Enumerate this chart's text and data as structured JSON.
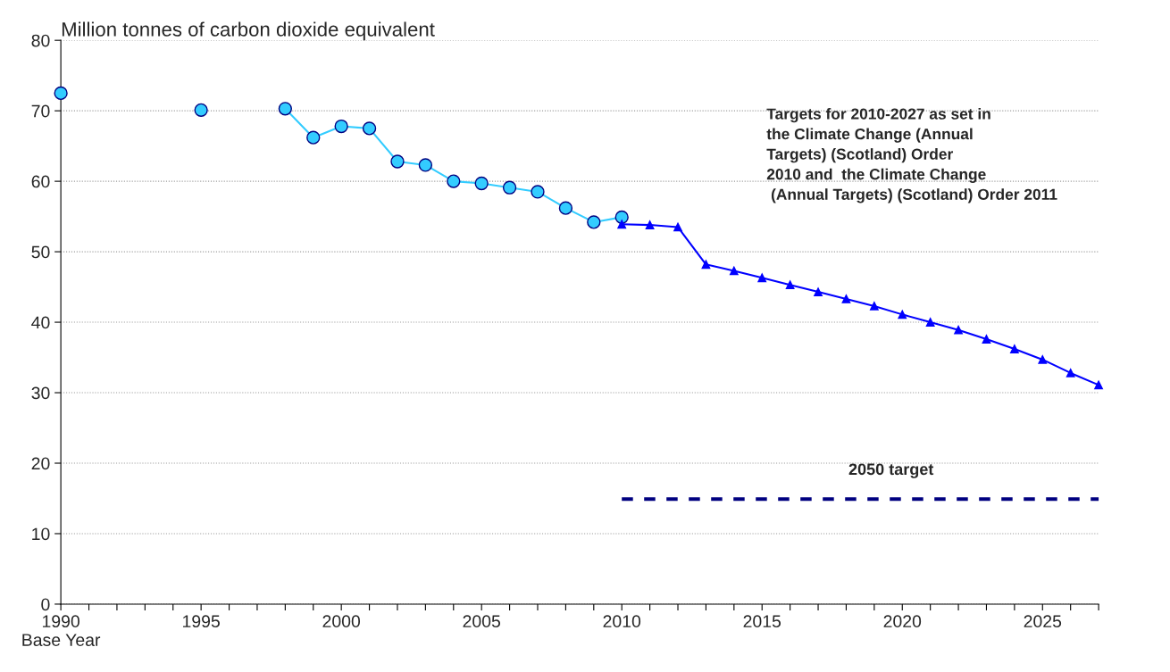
{
  "chart_data": {
    "type": "line",
    "ylabel": "Million tonnes of carbon dioxide equivalent",
    "xlim": [
      1990,
      2027
    ],
    "ylim": [
      0,
      80
    ],
    "xticks": [
      {
        "value": 1990,
        "label": "1990\nBase Year"
      },
      {
        "value": 1991,
        "label": null
      },
      {
        "value": 1992,
        "label": null
      },
      {
        "value": 1993,
        "label": null
      },
      {
        "value": 1994,
        "label": null
      },
      1995,
      {
        "value": 1996,
        "label": null
      },
      {
        "value": 1997,
        "label": null
      },
      {
        "value": 1998,
        "label": null
      },
      {
        "value": 1999,
        "label": null
      },
      2000,
      {
        "value": 2001,
        "label": null
      },
      {
        "value": 2002,
        "label": null
      },
      {
        "value": 2003,
        "label": null
      },
      {
        "value": 2004,
        "label": null
      },
      2005,
      {
        "value": 2006,
        "label": null
      },
      {
        "value": 2007,
        "label": null
      },
      {
        "value": 2008,
        "label": null
      },
      {
        "value": 2009,
        "label": null
      },
      2010,
      {
        "value": 2011,
        "label": null
      },
      {
        "value": 2012,
        "label": null
      },
      {
        "value": 2013,
        "label": null
      },
      {
        "value": 2014,
        "label": null
      },
      2015,
      {
        "value": 2016,
        "label": null
      },
      {
        "value": 2017,
        "label": null
      },
      {
        "value": 2018,
        "label": null
      },
      {
        "value": 2019,
        "label": null
      },
      2020,
      {
        "value": 2021,
        "label": null
      },
      {
        "value": 2022,
        "label": null
      },
      {
        "value": 2023,
        "label": null
      },
      {
        "value": 2024,
        "label": null
      },
      2025,
      {
        "value": 2026,
        "label": null
      },
      {
        "value": 2027,
        "label": null
      }
    ],
    "yticks": [
      0,
      10,
      20,
      30,
      40,
      50,
      60,
      70,
      80
    ],
    "grid": "y",
    "series": [
      {
        "color": "#33ccff",
        "marker": "circle",
        "line_style": "solid",
        "x": [
          1990,
          1992,
          1995,
          1997,
          1998,
          1999,
          2000,
          2001,
          2002,
          2003,
          2004,
          2005,
          2006,
          2007,
          2008,
          2009,
          2010
        ],
        "values": [
          72.5,
          null,
          70.1,
          null,
          70.3,
          66.2,
          67.8,
          67.5,
          62.8,
          62.3,
          60.0,
          59.7,
          59.1,
          58.5,
          56.2,
          54.2,
          54.9
        ]
      },
      {
        "color": "#0000ff",
        "marker": "triangle",
        "line_style": "solid",
        "x": [
          2010,
          2011,
          2012,
          2013,
          2014,
          2015,
          2016,
          2017,
          2018,
          2019,
          2020,
          2021,
          2022,
          2023,
          2024,
          2025,
          2026,
          2027
        ],
        "values": [
          53.9,
          53.8,
          53.5,
          48.2,
          47.3,
          46.3,
          45.3,
          44.3,
          43.3,
          42.3,
          41.1,
          40.0,
          38.9,
          37.6,
          36.2,
          34.7,
          32.8,
          31.1
        ]
      },
      {
        "color": "#000080",
        "marker": "none",
        "line_style": "dashed",
        "x": [
          2010,
          2027
        ],
        "values": [
          14.9,
          14.9
        ]
      }
    ],
    "annotations": [
      "Targets for 2010-2027 as set in\nthe Climate Change (Annual\nTargets) (Scotland) Order\n2010 and  the Climate Change\n (Annual Targets) (Scotland) Order 2011",
      "2050 target"
    ]
  }
}
